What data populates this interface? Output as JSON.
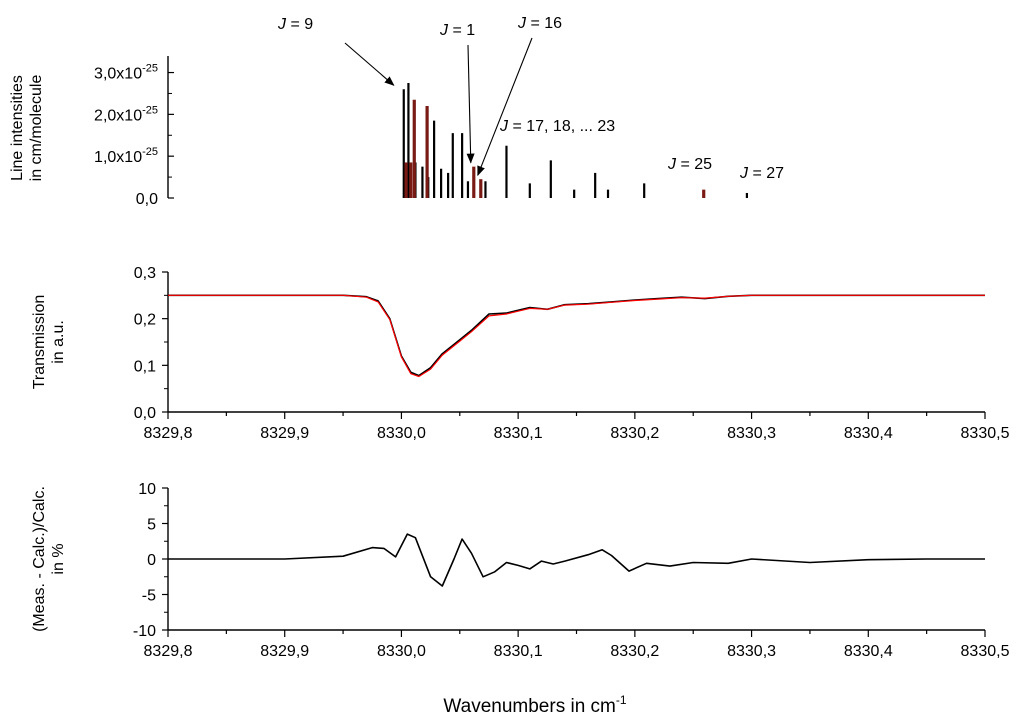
{
  "figure": {
    "xlabel_main": "Wavenumbers in cm",
    "xlabel_sup": "-1",
    "x_ticks": [
      "8329,8",
      "8329,9",
      "8330,0",
      "8330,1",
      "8330,2",
      "8330,3",
      "8330,4",
      "8330,5"
    ]
  },
  "chart_data": [
    {
      "type": "bar",
      "panel": "top",
      "ylabel_lines": [
        "Line intensities",
        "in cm/molecule"
      ],
      "xlim": [
        8329.8,
        8330.5
      ],
      "ylim": [
        0,
        3.3e-25
      ],
      "y_ticks": [
        {
          "value": 3e-25,
          "mant": "3,0x10",
          "exp": "-25"
        },
        {
          "value": 2e-25,
          "mant": "2,0x10",
          "exp": "-25"
        },
        {
          "value": 1e-25,
          "mant": "1,0x10",
          "exp": "-25"
        },
        {
          "value": 0,
          "mant": "0,0",
          "exp": ""
        }
      ],
      "series": [
        {
          "color": "#000000",
          "points": [
            [
              8330.002,
              2.6e-25
            ],
            [
              8330.006,
              2.75e-25
            ],
            [
              8330.012,
              8.5e-26
            ],
            [
              8330.018,
              7.5e-26
            ],
            [
              8330.023,
              5e-26
            ],
            [
              8330.028,
              1.85e-25
            ],
            [
              8330.034,
              7e-26
            ],
            [
              8330.04,
              6e-26
            ],
            [
              8330.044,
              1.55e-25
            ],
            [
              8330.052,
              1.55e-25
            ],
            [
              8330.057,
              4e-26
            ],
            [
              8330.072,
              4e-26
            ],
            [
              8330.09,
              1.25e-25
            ],
            [
              8330.11,
              3.5e-26
            ],
            [
              8330.128,
              9e-26
            ],
            [
              8330.148,
              2e-26
            ],
            [
              8330.166,
              6e-26
            ],
            [
              8330.177,
              2e-26
            ],
            [
              8330.208,
              3.5e-26
            ],
            [
              8330.296,
              1.2e-26
            ]
          ]
        },
        {
          "color": "#7a1a14",
          "points": [
            [
              8330.004,
              8.5e-26
            ],
            [
              8330.008,
              8.5e-26
            ],
            [
              8330.011,
              2.35e-25
            ],
            [
              8330.022,
              2.2e-25
            ],
            [
              8330.062,
              7.5e-26
            ],
            [
              8330.068,
              4.5e-26
            ],
            [
              8330.259,
              2e-26
            ]
          ]
        }
      ],
      "annotations": [
        {
          "j": "J",
          "rest": " = 9",
          "arrow": true,
          "tip": [
            8329.996,
            2.6e-25
          ]
        },
        {
          "j": "J",
          "rest": " = 1",
          "arrow": true,
          "tip": [
            8330.062,
            7.5e-26
          ]
        },
        {
          "j": "J",
          "rest": " = 16",
          "arrow": true,
          "tip": [
            8330.068,
            4.5e-26
          ]
        },
        {
          "j": "J",
          "rest": " = 17, 18, ... 23",
          "arrow": false
        },
        {
          "j": "J",
          "rest": " = 25",
          "arrow": false
        },
        {
          "j": "J",
          "rest": " = 27",
          "arrow": false
        }
      ]
    },
    {
      "type": "line",
      "panel": "middle",
      "ylabel_lines": [
        "Transmission",
        "in a.u."
      ],
      "xlim": [
        8329.8,
        8330.5
      ],
      "ylim": [
        0,
        0.3
      ],
      "y_ticks": [
        {
          "value": 0.3,
          "label": "0,3"
        },
        {
          "value": 0.2,
          "label": "0,2"
        },
        {
          "value": 0.1,
          "label": "0,1"
        },
        {
          "value": 0,
          "label": "0,0"
        }
      ],
      "series": [
        {
          "color": "#000000",
          "points": [
            [
              8329.8,
              0.25
            ],
            [
              8329.9,
              0.25
            ],
            [
              8329.95,
              0.25
            ],
            [
              8329.97,
              0.247
            ],
            [
              8329.98,
              0.238
            ],
            [
              8329.99,
              0.2
            ],
            [
              8330.0,
              0.12
            ],
            [
              8330.008,
              0.085
            ],
            [
              8330.015,
              0.078
            ],
            [
              8330.025,
              0.095
            ],
            [
              8330.035,
              0.125
            ],
            [
              8330.05,
              0.155
            ],
            [
              8330.06,
              0.175
            ],
            [
              8330.075,
              0.21
            ],
            [
              8330.09,
              0.212
            ],
            [
              8330.1,
              0.218
            ],
            [
              8330.11,
              0.224
            ],
            [
              8330.125,
              0.22
            ],
            [
              8330.14,
              0.23
            ],
            [
              8330.16,
              0.232
            ],
            [
              8330.18,
              0.236
            ],
            [
              8330.2,
              0.24
            ],
            [
              8330.22,
              0.243
            ],
            [
              8330.24,
              0.246
            ],
            [
              8330.26,
              0.243
            ],
            [
              8330.28,
              0.248
            ],
            [
              8330.3,
              0.25
            ],
            [
              8330.4,
              0.25
            ],
            [
              8330.5,
              0.25
            ]
          ]
        },
        {
          "color": "#ff0000",
          "points": [
            [
              8329.8,
              0.25
            ],
            [
              8329.9,
              0.25
            ],
            [
              8329.95,
              0.25
            ],
            [
              8329.97,
              0.246
            ],
            [
              8329.98,
              0.236
            ],
            [
              8329.99,
              0.198
            ],
            [
              8330.0,
              0.118
            ],
            [
              8330.008,
              0.082
            ],
            [
              8330.015,
              0.076
            ],
            [
              8330.025,
              0.092
            ],
            [
              8330.035,
              0.122
            ],
            [
              8330.05,
              0.152
            ],
            [
              8330.06,
              0.172
            ],
            [
              8330.075,
              0.206
            ],
            [
              8330.09,
              0.21
            ],
            [
              8330.1,
              0.216
            ],
            [
              8330.11,
              0.222
            ],
            [
              8330.125,
              0.22
            ],
            [
              8330.14,
              0.229
            ],
            [
              8330.16,
              0.231
            ],
            [
              8330.18,
              0.235
            ],
            [
              8330.2,
              0.239
            ],
            [
              8330.22,
              0.242
            ],
            [
              8330.24,
              0.245
            ],
            [
              8330.26,
              0.244
            ],
            [
              8330.28,
              0.248
            ],
            [
              8330.3,
              0.25
            ],
            [
              8330.4,
              0.25
            ],
            [
              8330.5,
              0.25
            ]
          ]
        }
      ]
    },
    {
      "type": "line",
      "panel": "bottom",
      "ylabel_lines": [
        "(Meas. - Calc.)/Calc.",
        "in %"
      ],
      "xlim": [
        8329.8,
        8330.5
      ],
      "ylim": [
        -10,
        10
      ],
      "y_ticks": [
        {
          "value": 10,
          "label": "10"
        },
        {
          "value": 5,
          "label": "5"
        },
        {
          "value": 0,
          "label": "0"
        },
        {
          "value": -5,
          "label": "-5"
        },
        {
          "value": -10,
          "label": "-10"
        }
      ],
      "series": [
        {
          "color": "#000000",
          "points": [
            [
              8329.8,
              0
            ],
            [
              8329.9,
              0
            ],
            [
              8329.95,
              0.4
            ],
            [
              8329.975,
              1.6
            ],
            [
              8329.985,
              1.5
            ],
            [
              8329.995,
              0.3
            ],
            [
              8330.005,
              3.5
            ],
            [
              8330.012,
              3.0
            ],
            [
              8330.025,
              -2.5
            ],
            [
              8330.035,
              -3.8
            ],
            [
              8330.045,
              0
            ],
            [
              8330.052,
              2.8
            ],
            [
              8330.06,
              0.8
            ],
            [
              8330.07,
              -2.5
            ],
            [
              8330.08,
              -1.8
            ],
            [
              8330.09,
              -0.5
            ],
            [
              8330.1,
              -0.9
            ],
            [
              8330.11,
              -1.4
            ],
            [
              8330.12,
              -0.3
            ],
            [
              8330.13,
              -0.7
            ],
            [
              8330.14,
              -0.3
            ],
            [
              8330.16,
              0.6
            ],
            [
              8330.172,
              1.3
            ],
            [
              8330.18,
              0.5
            ],
            [
              8330.195,
              -1.7
            ],
            [
              8330.21,
              -0.6
            ],
            [
              8330.23,
              -1.0
            ],
            [
              8330.25,
              -0.5
            ],
            [
              8330.28,
              -0.6
            ],
            [
              8330.3,
              0
            ],
            [
              8330.35,
              -0.5
            ],
            [
              8330.4,
              -0.1
            ],
            [
              8330.45,
              0
            ],
            [
              8330.5,
              0
            ]
          ]
        }
      ]
    }
  ]
}
